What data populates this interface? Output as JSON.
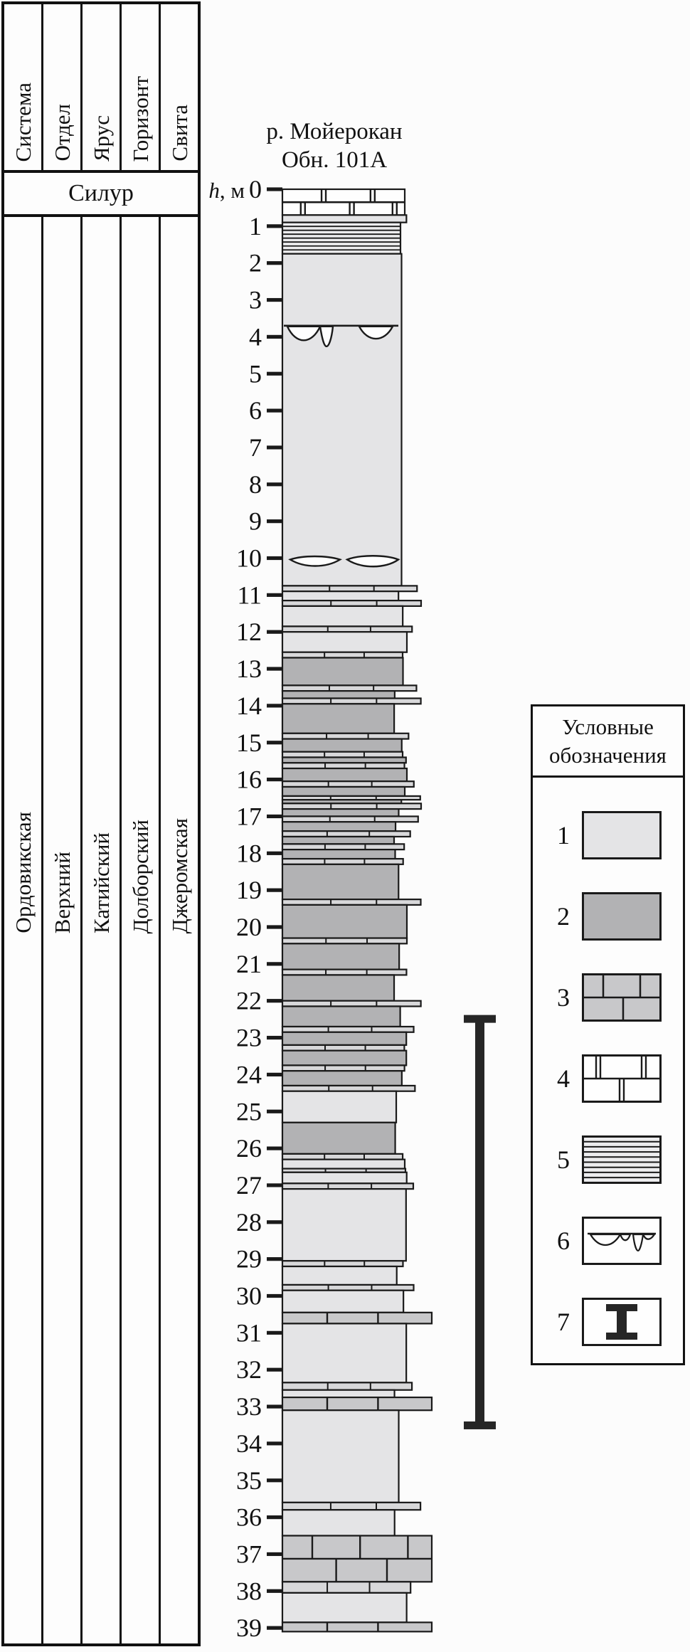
{
  "table": {
    "headers": [
      "Система",
      "Отдел",
      "Ярус",
      "Горизонт",
      "Свита"
    ],
    "period_row": "Силур",
    "values": [
      "Ордовикская",
      "Верхний",
      "Катийский",
      "Долборский",
      "Джеромская"
    ]
  },
  "section": {
    "title_line1": "р. Мойерокан",
    "title_line2": "Обн. 101А"
  },
  "scale": {
    "label_h": "h",
    "label_unit": ", м",
    "min": 0,
    "max": 39,
    "step": 1
  },
  "legend": {
    "title_line1": "Условные",
    "title_line2": "обозначения",
    "items": [
      {
        "num": "1",
        "pattern": "light"
      },
      {
        "num": "2",
        "pattern": "dark"
      },
      {
        "num": "3",
        "pattern": "brick"
      },
      {
        "num": "4",
        "pattern": "jointed"
      },
      {
        "num": "5",
        "pattern": "laminated"
      },
      {
        "num": "6",
        "pattern": "erosion"
      },
      {
        "num": "7",
        "pattern": "rangebar"
      }
    ]
  },
  "colors": {
    "light": "#e4e4e6",
    "dark": "#b2b2b4",
    "interbed": "#d8d8da",
    "brick": "#c8c8ca",
    "stripe_bg": "#ececee",
    "white": "#fefefe",
    "ink": "#1a1a1a"
  },
  "chart_data": {
    "type": "stratigraphic-column",
    "depth_unit": "м",
    "depth_range": [
      0,
      39
    ],
    "beds": [
      [
        0,
        0.7,
        "jointed"
      ],
      [
        0.7,
        0.9,
        "light"
      ],
      [
        0.9,
        1.75,
        "laminated"
      ],
      [
        1.75,
        10.75,
        "light"
      ],
      [
        10.75,
        10.9,
        "limeband"
      ],
      [
        10.9,
        11.15,
        "light"
      ],
      [
        11.15,
        11.3,
        "limeband"
      ],
      [
        11.3,
        11.85,
        "light"
      ],
      [
        11.85,
        12.0,
        "limeband"
      ],
      [
        12.0,
        12.55,
        "light"
      ],
      [
        12.55,
        12.7,
        "limeband"
      ],
      [
        12.7,
        13.45,
        "dark"
      ],
      [
        13.45,
        13.6,
        "limeband"
      ],
      [
        13.6,
        13.8,
        "dark"
      ],
      [
        13.8,
        13.95,
        "limeband"
      ],
      [
        13.95,
        14.75,
        "dark"
      ],
      [
        14.75,
        14.9,
        "limeband"
      ],
      [
        14.9,
        15.25,
        "dark"
      ],
      [
        15.25,
        15.4,
        "limeband"
      ],
      [
        15.4,
        15.55,
        "dark"
      ],
      [
        15.55,
        15.7,
        "limeband"
      ],
      [
        15.7,
        16.05,
        "dark"
      ],
      [
        16.05,
        16.2,
        "limeband"
      ],
      [
        16.2,
        16.45,
        "dark"
      ],
      [
        16.45,
        16.55,
        "limeband"
      ],
      [
        16.55,
        16.65,
        "dark"
      ],
      [
        16.65,
        16.8,
        "limeband"
      ],
      [
        16.8,
        17.0,
        "dark"
      ],
      [
        17.0,
        17.15,
        "limeband"
      ],
      [
        17.15,
        17.4,
        "dark"
      ],
      [
        17.4,
        17.55,
        "limeband"
      ],
      [
        17.55,
        17.75,
        "dark"
      ],
      [
        17.75,
        17.9,
        "limeband"
      ],
      [
        17.9,
        18.15,
        "dark"
      ],
      [
        18.15,
        18.3,
        "limeband"
      ],
      [
        18.3,
        19.25,
        "dark"
      ],
      [
        19.25,
        19.4,
        "limeband"
      ],
      [
        19.4,
        20.3,
        "dark"
      ],
      [
        20.3,
        20.45,
        "limeband"
      ],
      [
        20.45,
        21.15,
        "dark"
      ],
      [
        21.15,
        21.3,
        "limeband"
      ],
      [
        21.3,
        22.0,
        "dark"
      ],
      [
        22.0,
        22.15,
        "limeband"
      ],
      [
        22.15,
        22.7,
        "dark"
      ],
      [
        22.7,
        22.85,
        "limeband"
      ],
      [
        22.85,
        23.2,
        "dark"
      ],
      [
        23.2,
        23.35,
        "limeband"
      ],
      [
        23.35,
        23.75,
        "dark"
      ],
      [
        23.75,
        23.9,
        "limeband"
      ],
      [
        23.9,
        24.3,
        "dark"
      ],
      [
        24.3,
        24.45,
        "limeband"
      ],
      [
        24.45,
        25.3,
        "light"
      ],
      [
        25.3,
        26.15,
        "dark"
      ],
      [
        26.15,
        26.3,
        "limeband"
      ],
      [
        26.3,
        26.55,
        "light"
      ],
      [
        26.55,
        26.65,
        "limeband"
      ],
      [
        26.65,
        26.95,
        "light"
      ],
      [
        26.95,
        27.1,
        "limeband"
      ],
      [
        27.1,
        29.05,
        "light"
      ],
      [
        29.05,
        29.2,
        "limeband"
      ],
      [
        29.2,
        29.7,
        "light"
      ],
      [
        29.7,
        29.85,
        "limeband"
      ],
      [
        29.85,
        30.45,
        "light"
      ],
      [
        30.45,
        30.75,
        "brick"
      ],
      [
        30.75,
        32.35,
        "light"
      ],
      [
        32.35,
        32.55,
        "limeband"
      ],
      [
        32.55,
        32.75,
        "light"
      ],
      [
        32.75,
        33.1,
        "brick"
      ],
      [
        33.1,
        35.6,
        "light"
      ],
      [
        35.6,
        35.8,
        "limeband"
      ],
      [
        35.8,
        36.5,
        "light"
      ],
      [
        36.5,
        37.75,
        "brick"
      ],
      [
        37.75,
        38.05,
        "limeband"
      ],
      [
        38.05,
        38.85,
        "light"
      ],
      [
        38.85,
        39.1,
        "brick"
      ]
    ],
    "lithology_legend_map": {
      "light": "1",
      "dark": "2",
      "limeband": "3",
      "brick": "3",
      "jointed": "4",
      "laminated": "5"
    },
    "features": [
      {
        "at": 3.7,
        "type": "erosion-surface",
        "legend": "6"
      },
      {
        "at": 10.0,
        "type": "lenses",
        "legend": "6"
      }
    ],
    "range_bar": {
      "from": 22.5,
      "to": 33.5,
      "legend": "7"
    }
  }
}
